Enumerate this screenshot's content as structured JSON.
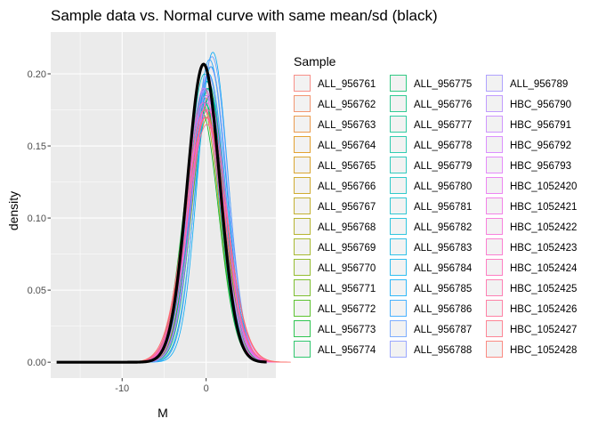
{
  "chart_data": {
    "type": "line",
    "title": "Sample data vs. Normal curve with same mean/sd (black)",
    "xlabel": "M",
    "ylabel": "density",
    "xlim": [
      -18.5,
      8.3
    ],
    "ylim": [
      -0.011,
      0.229
    ],
    "x_ticks": [
      -10,
      0
    ],
    "x_tick_labels": [
      "-10",
      "0"
    ],
    "y_ticks": [
      0,
      0.05,
      0.1,
      0.15,
      0.2
    ],
    "y_tick_labels": [
      "0.00",
      "0.05",
      "0.10",
      "0.15",
      "0.20"
    ],
    "grid": true,
    "legend": {
      "title": "Sample",
      "placement": "right",
      "columns": 3
    },
    "normal_curve": {
      "color": "#000000",
      "mean": -0.3,
      "sd": 1.93,
      "x_range": [
        -17.8,
        7.2
      ]
    },
    "series": [
      {
        "name": "ALL_956761",
        "color": "#F8766D",
        "mean": -0.2,
        "sd": 2.15,
        "peak": 0.19
      },
      {
        "name": "ALL_956762",
        "color": "#F17E50",
        "mean": 0.1,
        "sd": 2.0,
        "peak": 0.18
      },
      {
        "name": "ALL_956763",
        "color": "#E88526",
        "mean": -0.4,
        "sd": 2.1,
        "peak": 0.185
      },
      {
        "name": "ALL_956764",
        "color": "#DE8C00",
        "mean": 0.3,
        "sd": 1.95,
        "peak": 0.19
      },
      {
        "name": "ALL_956765",
        "color": "#D39200",
        "mean": -0.1,
        "sd": 2.2,
        "peak": 0.175
      },
      {
        "name": "ALL_956766",
        "color": "#C69900",
        "mean": 0.0,
        "sd": 2.05,
        "peak": 0.195
      },
      {
        "name": "ALL_956767",
        "color": "#B79F00",
        "mean": -0.5,
        "sd": 2.0,
        "peak": 0.18
      },
      {
        "name": "ALL_956768",
        "color": "#A7A400",
        "mean": 0.2,
        "sd": 2.1,
        "peak": 0.17
      },
      {
        "name": "ALL_956769",
        "color": "#94AA00",
        "mean": -0.3,
        "sd": 1.9,
        "peak": 0.19
      },
      {
        "name": "ALL_956770",
        "color": "#7DAE00",
        "mean": 0.4,
        "sd": 2.0,
        "peak": 0.185
      },
      {
        "name": "ALL_956771",
        "color": "#61B200",
        "mean": -0.2,
        "sd": 2.15,
        "peak": 0.18
      },
      {
        "name": "ALL_956772",
        "color": "#39B600",
        "mean": 0.1,
        "sd": 1.95,
        "peak": 0.19
      },
      {
        "name": "ALL_956773",
        "color": "#00B92B",
        "mean": -0.6,
        "sd": 2.05,
        "peak": 0.175
      },
      {
        "name": "ALL_956774",
        "color": "#00BB4E",
        "mean": 0.0,
        "sd": 2.1,
        "peak": 0.185
      },
      {
        "name": "ALL_956775",
        "color": "#00BE67",
        "mean": 0.3,
        "sd": 1.9,
        "peak": 0.19
      },
      {
        "name": "ALL_956776",
        "color": "#00C07B",
        "mean": -0.1,
        "sd": 2.0,
        "peak": 0.18
      },
      {
        "name": "ALL_956777",
        "color": "#00C18D",
        "mean": 0.2,
        "sd": 2.1,
        "peak": 0.195
      },
      {
        "name": "ALL_956778",
        "color": "#00C19F",
        "mean": -0.4,
        "sd": 1.95,
        "peak": 0.185
      },
      {
        "name": "ALL_956779",
        "color": "#00C0AF",
        "mean": 0.1,
        "sd": 2.05,
        "peak": 0.19
      },
      {
        "name": "ALL_956780",
        "color": "#00BFBE",
        "mean": -0.2,
        "sd": 2.0,
        "peak": 0.2
      },
      {
        "name": "ALL_956781",
        "color": "#00BCCB",
        "mean": 0.5,
        "sd": 1.9,
        "peak": 0.185
      },
      {
        "name": "ALL_956782",
        "color": "#00B9D8",
        "mean": 0.0,
        "sd": 2.1,
        "peak": 0.195
      },
      {
        "name": "ALL_956783",
        "color": "#00B4E4",
        "mean": 0.6,
        "sd": 1.85,
        "peak": 0.205
      },
      {
        "name": "ALL_956784",
        "color": "#00AFEE",
        "mean": 0.3,
        "sd": 2.0,
        "peak": 0.2
      },
      {
        "name": "ALL_956785",
        "color": "#00A9F8",
        "mean": 0.8,
        "sd": 1.8,
        "peak": 0.215
      },
      {
        "name": "ALL_956786",
        "color": "#20A1FF",
        "mean": 0.4,
        "sd": 1.95,
        "peak": 0.21
      },
      {
        "name": "ALL_956787",
        "color": "#619CFF",
        "mean": 0.7,
        "sd": 1.9,
        "peak": 0.212
      },
      {
        "name": "ALL_956788",
        "color": "#8494FF",
        "mean": 0.5,
        "sd": 2.0,
        "peak": 0.205
      },
      {
        "name": "ALL_956789",
        "color": "#9E8CFF",
        "mean": 0.2,
        "sd": 2.05,
        "peak": 0.2
      },
      {
        "name": "HBC_956790",
        "color": "#B385FF",
        "mean": -0.1,
        "sd": 2.0,
        "peak": 0.19
      },
      {
        "name": "HBC_956791",
        "color": "#C57DFF",
        "mean": 0.0,
        "sd": 2.1,
        "peak": 0.185
      },
      {
        "name": "HBC_956792",
        "color": "#D476FF",
        "mean": -0.3,
        "sd": 1.95,
        "peak": 0.19
      },
      {
        "name": "HBC_956793",
        "color": "#E070FA",
        "mean": 0.1,
        "sd": 2.05,
        "peak": 0.18
      },
      {
        "name": "HBC_1052420",
        "color": "#EA6AF0",
        "mean": -0.2,
        "sd": 2.15,
        "peak": 0.175
      },
      {
        "name": "HBC_1052421",
        "color": "#F265E4",
        "mean": 0.3,
        "sd": 2.0,
        "peak": 0.185
      },
      {
        "name": "HBC_1052422",
        "color": "#F863D6",
        "mean": 0.0,
        "sd": 2.2,
        "peak": 0.17
      },
      {
        "name": "HBC_1052423",
        "color": "#FC61C7",
        "mean": -0.4,
        "sd": 2.1,
        "peak": 0.18
      },
      {
        "name": "HBC_1052424",
        "color": "#FF61B6",
        "mean": 0.2,
        "sd": 2.25,
        "peak": 0.175
      },
      {
        "name": "HBC_1052425",
        "color": "#FF62A4",
        "mean": -0.1,
        "sd": 2.3,
        "peak": 0.17
      },
      {
        "name": "HBC_1052426",
        "color": "#FF6591",
        "mean": 0.1,
        "sd": 2.35,
        "peak": 0.165
      },
      {
        "name": "HBC_1052427",
        "color": "#FE6A7D",
        "mean": -0.2,
        "sd": 2.3,
        "peak": 0.175
      },
      {
        "name": "HBC_1052428",
        "color": "#FB7066",
        "mean": 0.0,
        "sd": 2.4,
        "peak": 0.17
      }
    ]
  }
}
